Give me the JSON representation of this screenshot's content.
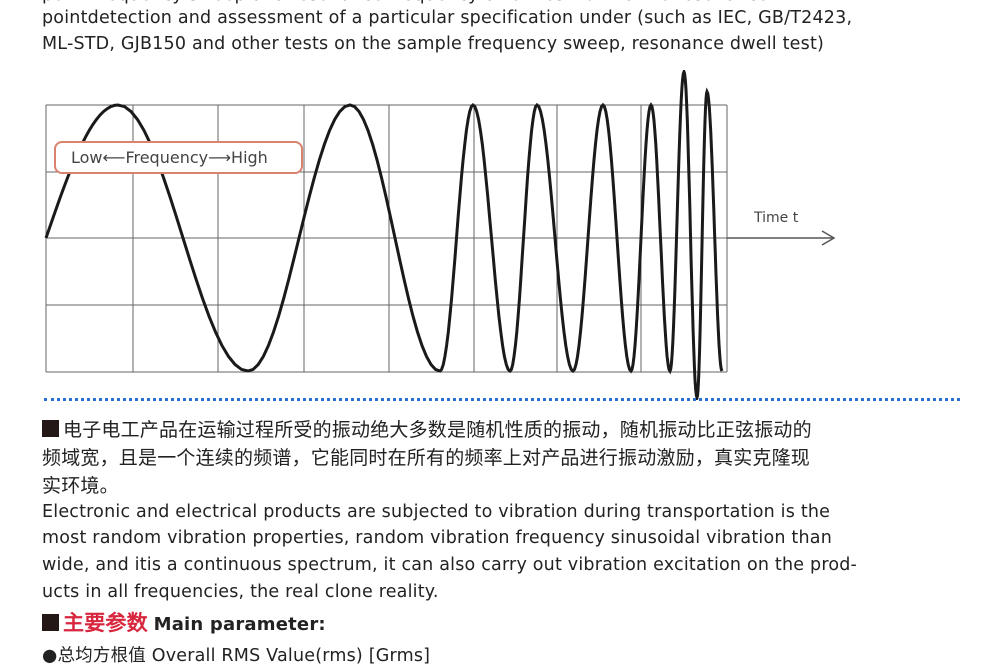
{
  "intro": {
    "line0": "point frequency sweep and resonance frequency dwell test to find the resonance",
    "line1": "pointdetection and assessment of a particular specification under (such as IEC, GB/T2423,",
    "line2": "ML-STD, GJB150 and other tests on the sample frequency sweep, resonance dwell test)"
  },
  "diagram": {
    "label": "Low⟵Frequency⟶High",
    "axis_label": "Time t",
    "colors": {
      "wave": "#1a1a1a",
      "grid": "#555555",
      "label_border": "#d9826e"
    }
  },
  "random": {
    "cn1": "电子电工产品在运输过程所受的振动绝大多数是随机性质的振动，随机振动比正弦振动的",
    "cn2": "频域宽，且是一个连续的频谱，它能同时在所有的频率上对产品进行振动激励，真实克隆现",
    "cn3": "实环境。",
    "en1": "Electronic and electrical products are subjected to vibration during transportation is the",
    "en2": "most random vibration properties, random vibration frequency sinusoidal vibration than",
    "en3": "wide, and itis a continuous spectrum, it can also carry out vibration excitation on the prod-",
    "en4": "ucts in all frequencies, the real clone reality."
  },
  "params": {
    "title_cn": "主要参数",
    "title_en": "Main parameter:",
    "item1": "●总均方根值 Overall RMS Value(rms) [Grms]"
  }
}
